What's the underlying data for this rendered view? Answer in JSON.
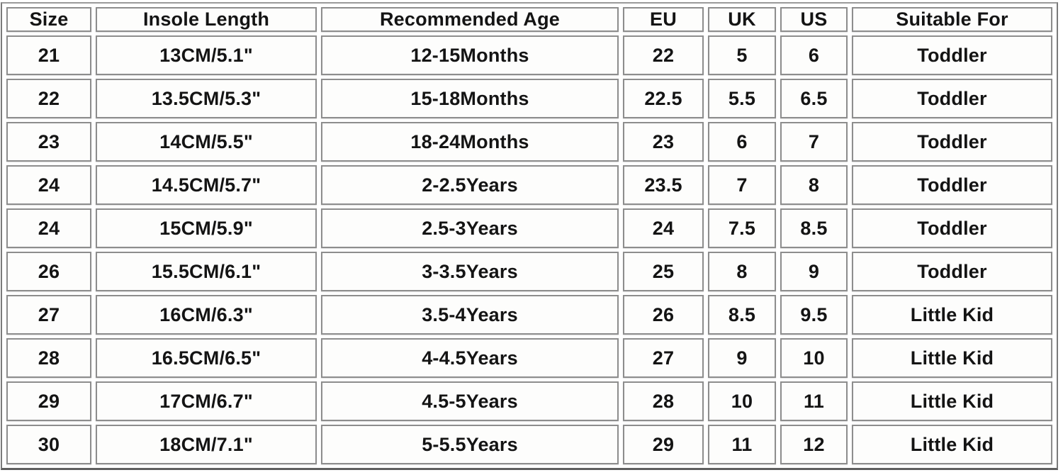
{
  "chart_data": {
    "type": "table",
    "title": "",
    "columns": [
      "Size",
      "Insole Length",
      "Recommended Age",
      "EU",
      "UK",
      "US",
      "Suitable For"
    ],
    "rows": [
      [
        "21",
        "13CM/5.1\"",
        "12-15Months",
        "22",
        "5",
        "6",
        "Toddler"
      ],
      [
        "22",
        "13.5CM/5.3\"",
        "15-18Months",
        "22.5",
        "5.5",
        "6.5",
        "Toddler"
      ],
      [
        "23",
        "14CM/5.5\"",
        "18-24Months",
        "23",
        "6",
        "7",
        "Toddler"
      ],
      [
        "24",
        "14.5CM/5.7\"",
        "2-2.5Years",
        "23.5",
        "7",
        "8",
        "Toddler"
      ],
      [
        "24",
        "15CM/5.9\"",
        "2.5-3Years",
        "24",
        "7.5",
        "8.5",
        "Toddler"
      ],
      [
        "26",
        "15.5CM/6.1\"",
        "3-3.5Years",
        "25",
        "8",
        "9",
        "Toddler"
      ],
      [
        "27",
        "16CM/6.3\"",
        "3.5-4Years",
        "26",
        "8.5",
        "9.5",
        "Little Kid"
      ],
      [
        "28",
        "16.5CM/6.5\"",
        "4-4.5Years",
        "27",
        "9",
        "10",
        "Little Kid"
      ],
      [
        "29",
        "17CM/6.7\"",
        "4.5-5Years",
        "28",
        "10",
        "11",
        "Little Kid"
      ],
      [
        "30",
        "18CM/7.1\"",
        "5-5.5Years",
        "29",
        "11",
        "12",
        "Little Kid"
      ]
    ],
    "colors": {
      "cell_background": "#fdfdfc",
      "cell_border": "#8d8d8d",
      "outer_border": "#7a7a7a",
      "text": "#141414"
    },
    "layout_hints": {
      "grid": "separated-cells",
      "header_position": "top-row"
    }
  }
}
